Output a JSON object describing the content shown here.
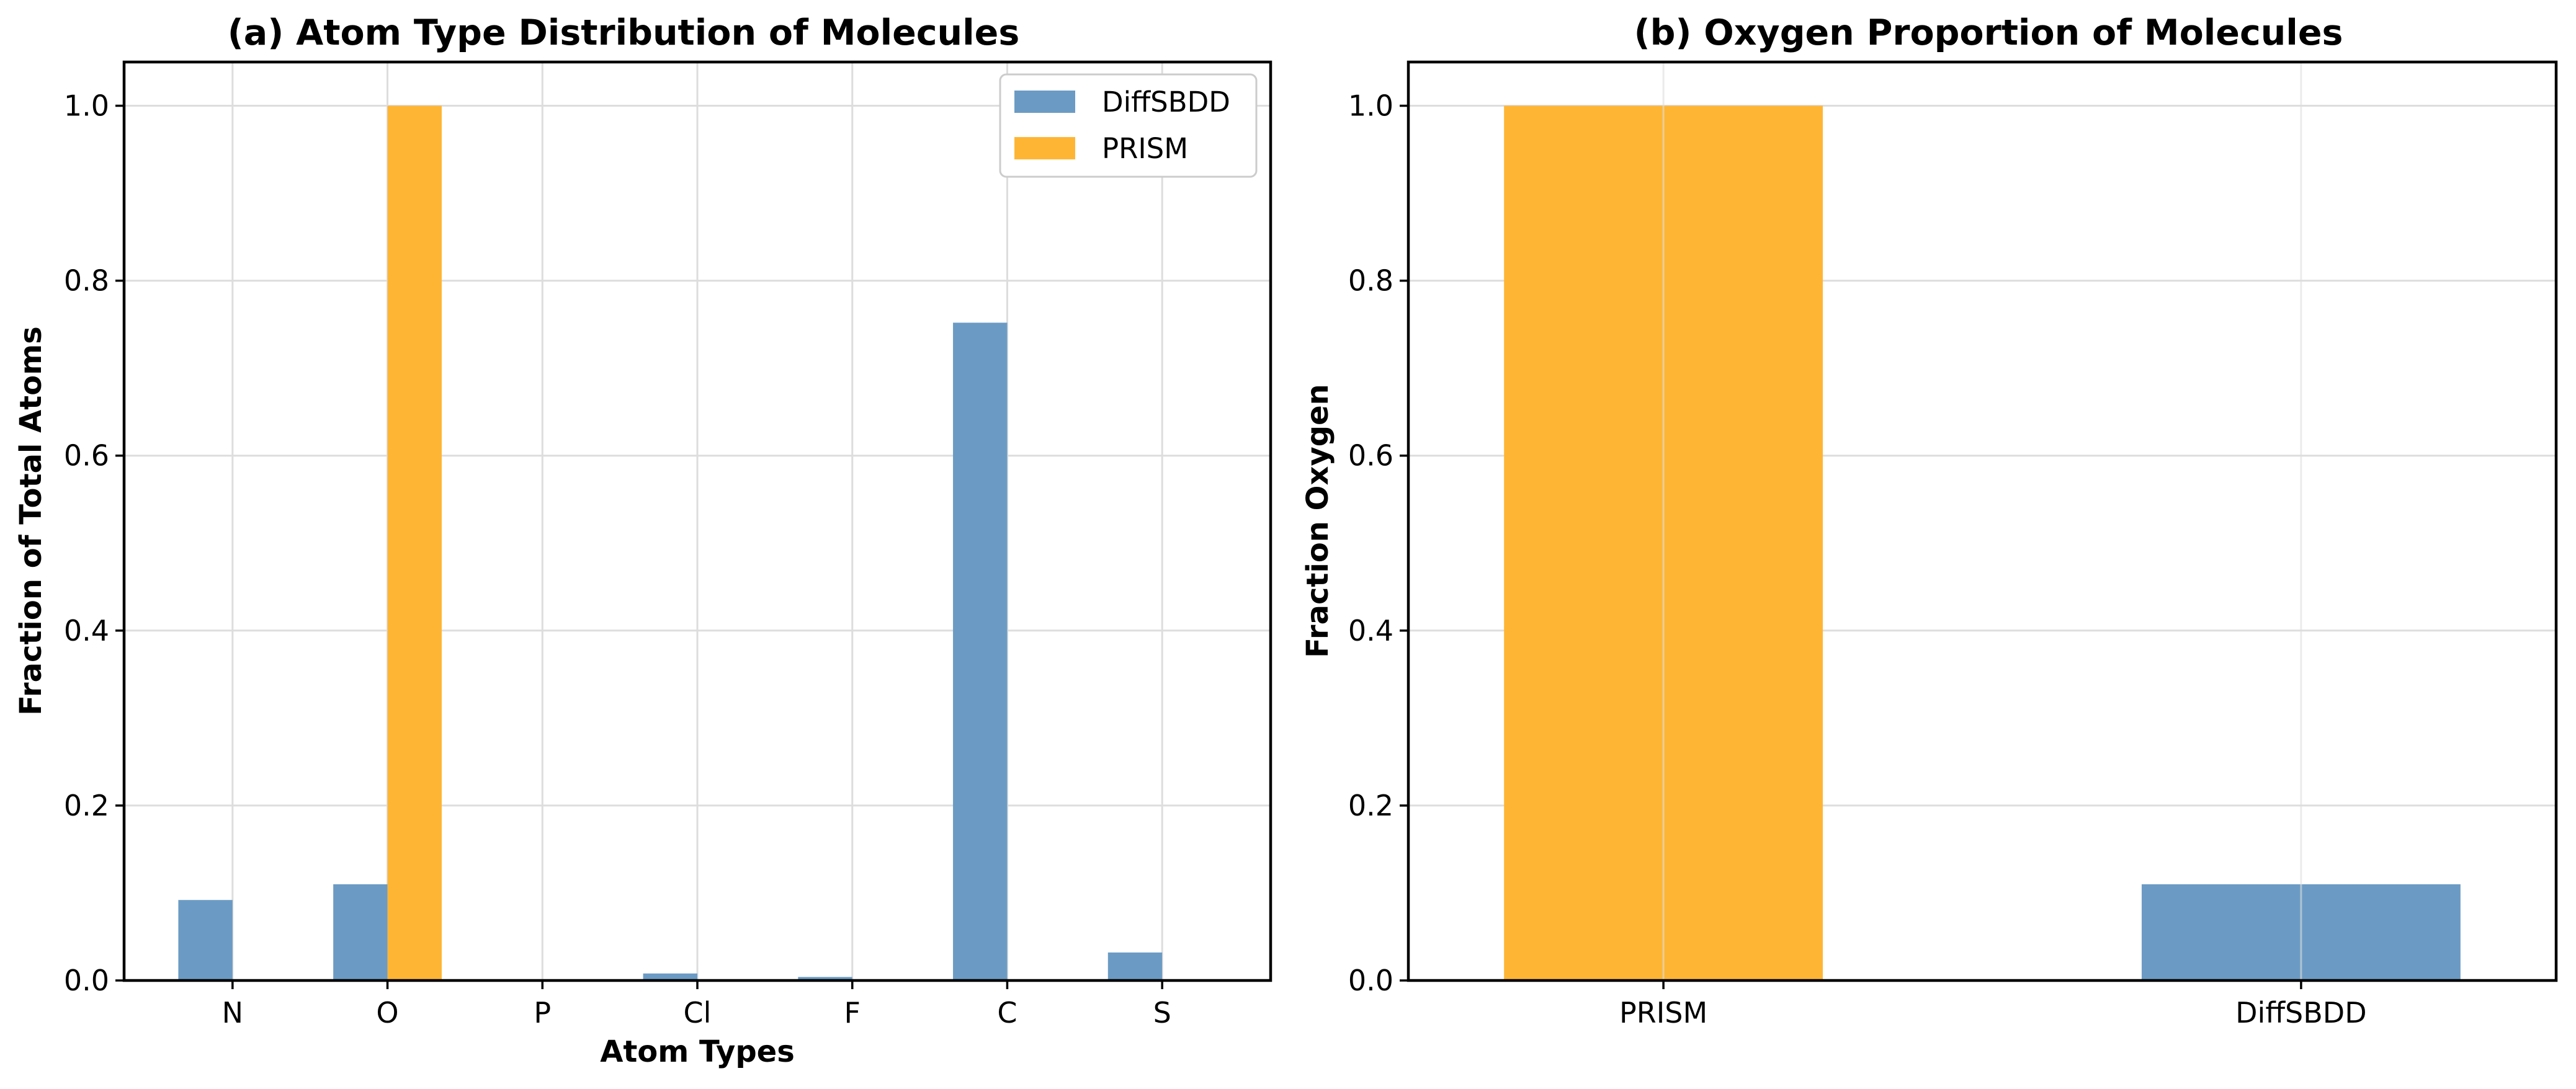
{
  "colors": {
    "DiffSBDD": "#6b9bc4",
    "PRISM": "#ffb534",
    "grid": "#dddddd"
  },
  "chart_data": [
    {
      "type": "bar",
      "title": "(a) Atom Type Distribution of Molecules",
      "xlabel": "Atom Types",
      "ylabel": "Fraction of Total Atoms",
      "categories": [
        "N",
        "O",
        "P",
        "Cl",
        "F",
        "C",
        "S"
      ],
      "series": [
        {
          "name": "DiffSBDD",
          "color": "#6b9bc4",
          "values": [
            0.092,
            0.11,
            0.0,
            0.008,
            0.004,
            0.752,
            0.032
          ]
        },
        {
          "name": "PRISM",
          "color": "#ffb534",
          "values": [
            0.0,
            1.0,
            0.0,
            0.0,
            0.0,
            0.0,
            0.0
          ]
        }
      ],
      "ylim": [
        0,
        1.05
      ],
      "yticks": [
        "0.0",
        "0.2",
        "0.4",
        "0.6",
        "0.8",
        "1.0"
      ],
      "grid": true,
      "legend": "top-right"
    },
    {
      "type": "bar",
      "title": "(b) Oxygen Proportion of Molecules",
      "xlabel": "",
      "ylabel": "Fraction Oxygen",
      "categories": [
        "PRISM",
        "DiffSBDD"
      ],
      "values": [
        1.0,
        0.11
      ],
      "colors": [
        "#ffb534",
        "#6b9bc4"
      ],
      "ylim": [
        0,
        1.05
      ],
      "yticks": [
        "0.0",
        "0.2",
        "0.4",
        "0.6",
        "0.8",
        "1.0"
      ],
      "grid": true
    }
  ]
}
